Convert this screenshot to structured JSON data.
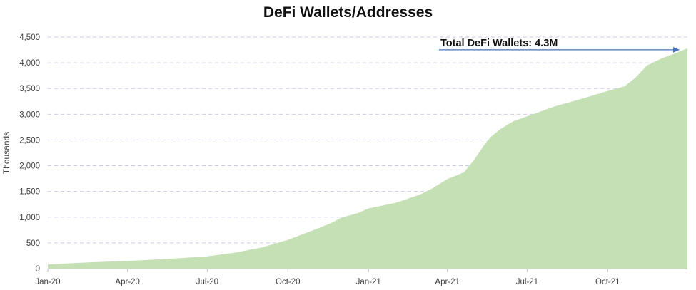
{
  "chart_data": {
    "type": "area",
    "title": "DeFi Wallets/Addresses",
    "xlabel": "",
    "ylabel": "Thousands",
    "ylim": [
      0,
      4500
    ],
    "yticks": [
      0,
      500,
      1000,
      1500,
      2000,
      2500,
      3000,
      3500,
      4000,
      4500
    ],
    "ytick_labels": [
      "0",
      "500",
      "1,000",
      "1,500",
      "2,000",
      "2,500",
      "3,000",
      "3,500",
      "4,000",
      "4,500"
    ],
    "xlim": [
      "2020-01-01",
      "2021-12-31"
    ],
    "xticks": [
      "2020-01-01",
      "2020-04-01",
      "2020-07-01",
      "2020-10-01",
      "2021-01-01",
      "2021-04-01",
      "2021-07-01",
      "2021-10-01"
    ],
    "xtick_labels": [
      "Jan-20",
      "Apr-20",
      "Jul-20",
      "Oct-20",
      "Jan-21",
      "Apr-21",
      "Jul-21",
      "Oct-21"
    ],
    "grid": "horizontal dashed",
    "colors": {
      "area": "#c5e0b4",
      "grid": "#c8cde6",
      "arrow": "#4472c4",
      "text": "#404040"
    },
    "series": [
      {
        "x": [
          "2020-01-01",
          "2020-02-01",
          "2020-03-01",
          "2020-04-01",
          "2020-05-01",
          "2020-06-01",
          "2020-07-01",
          "2020-08-01",
          "2020-09-01",
          "2020-10-01",
          "2020-11-01",
          "2020-11-20",
          "2020-12-01",
          "2020-12-20",
          "2021-01-01",
          "2021-02-01",
          "2021-03-01",
          "2021-03-15",
          "2021-04-01",
          "2021-04-20",
          "2021-05-01",
          "2021-05-15",
          "2021-05-20",
          "2021-06-01",
          "2021-06-15",
          "2021-07-01",
          "2021-08-01",
          "2021-09-01",
          "2021-10-01",
          "2021-10-20",
          "2021-11-01",
          "2021-11-15",
          "2021-12-01",
          "2021-12-15",
          "2021-12-31"
        ],
        "values": [
          80,
          110,
          130,
          150,
          175,
          205,
          240,
          310,
          410,
          560,
          760,
          890,
          990,
          1080,
          1170,
          1280,
          1440,
          1560,
          1740,
          1870,
          2100,
          2450,
          2550,
          2720,
          2860,
          2960,
          3150,
          3300,
          3450,
          3540,
          3700,
          3950,
          4080,
          4170,
          4280
        ]
      }
    ],
    "annotations": [
      {
        "text": "Total DeFi Wallets: 4.3M",
        "points_to": {
          "x": "2021-12-31",
          "y": 4280
        }
      }
    ]
  }
}
